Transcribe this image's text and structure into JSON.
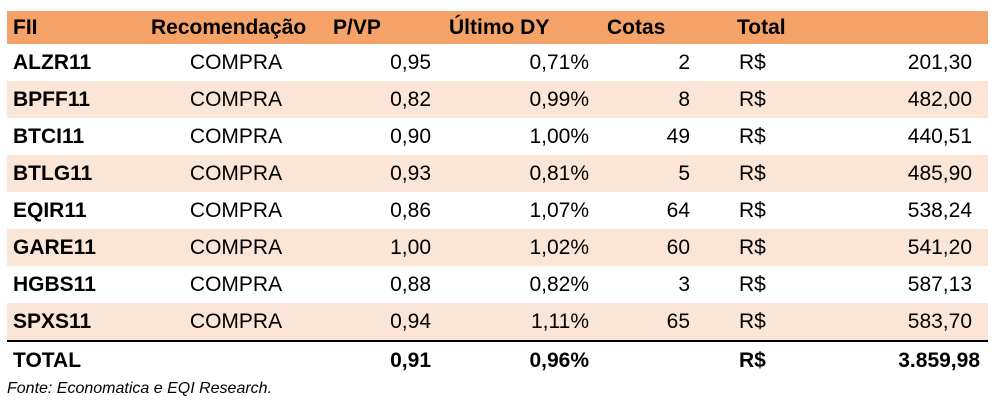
{
  "table": {
    "headers": {
      "fii": "FII",
      "recomendacao": "Recomendação",
      "pvp": "P/VP",
      "ultimo_dy": "Último DY",
      "cotas": "Cotas",
      "total": "Total"
    },
    "rows": [
      {
        "fii": "ALZR11",
        "recomendacao": "COMPRA",
        "pvp": "0,95",
        "ultimo_dy": "0,71%",
        "cotas": "2",
        "currency": "R$",
        "total": "201,30"
      },
      {
        "fii": "BPFF11",
        "recomendacao": "COMPRA",
        "pvp": "0,82",
        "ultimo_dy": "0,99%",
        "cotas": "8",
        "currency": "R$",
        "total": "482,00"
      },
      {
        "fii": "BTCI11",
        "recomendacao": "COMPRA",
        "pvp": "0,90",
        "ultimo_dy": "1,00%",
        "cotas": "49",
        "currency": "R$",
        "total": "440,51"
      },
      {
        "fii": "BTLG11",
        "recomendacao": "COMPRA",
        "pvp": "0,93",
        "ultimo_dy": "0,81%",
        "cotas": "5",
        "currency": "R$",
        "total": "485,90"
      },
      {
        "fii": "EQIR11",
        "recomendacao": "COMPRA",
        "pvp": "0,86",
        "ultimo_dy": "1,07%",
        "cotas": "64",
        "currency": "R$",
        "total": "538,24"
      },
      {
        "fii": "GARE11",
        "recomendacao": "COMPRA",
        "pvp": "1,00",
        "ultimo_dy": "1,02%",
        "cotas": "60",
        "currency": "R$",
        "total": "541,20"
      },
      {
        "fii": "HGBS11",
        "recomendacao": "COMPRA",
        "pvp": "0,88",
        "ultimo_dy": "0,82%",
        "cotas": "3",
        "currency": "R$",
        "total": "587,13"
      },
      {
        "fii": "SPXS11",
        "recomendacao": "COMPRA",
        "pvp": "0,94",
        "ultimo_dy": "1,11%",
        "cotas": "65",
        "currency": "R$",
        "total": "583,70"
      }
    ],
    "footer": {
      "label": "TOTAL",
      "pvp": "0,91",
      "ultimo_dy": "0,96%",
      "currency": "R$",
      "total": "3.859,98"
    }
  },
  "source": "Fonte: Economatica e EQI Research.",
  "colors": {
    "header_bg": "#f4a268",
    "shaded_row_bg": "#fbe5d6"
  }
}
